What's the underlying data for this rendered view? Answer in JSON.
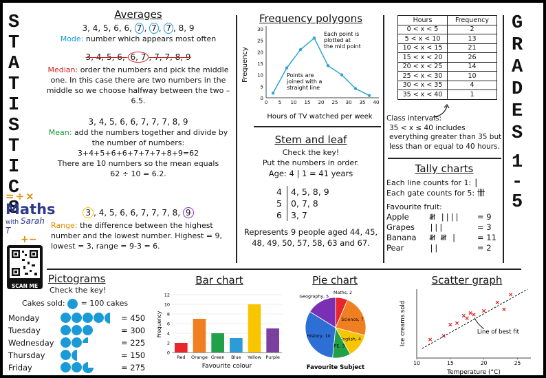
{
  "side_left": "STATISTICS",
  "side_right": "GRADES 1-5",
  "averages": {
    "title": "Averages",
    "list1_plain": "3, 4, 5, 6, 6, ",
    "list1_circled": [
      "7",
      "7",
      "7"
    ],
    "list1_end": ", 8, 9",
    "mode_label": "Mode:",
    "mode_text": "number which appears most often",
    "list2_struck1": "3, 4, 5, 6, ",
    "list2_circled": "6, 7",
    "list2_struck2": ", 7, 7, 8, 9",
    "median_label": "Median:",
    "median_text": "order the numbers and pick the middle one. In this case there are two numbers in the middle so we choose halfway between the two – 6.5.",
    "list3": "3, 4, 5, 6, 6, 7, 7, 7, 8, 9",
    "mean_label": "Mean:",
    "mean_text": "add the numbers together and divide by the number of numbers:",
    "mean_sum": "3+4+5+6+6+7+7+7+8+9=62",
    "mean_line2": "There are 10 numbers so the mean equals",
    "mean_line3": "62 ÷ 10 = 6.2.",
    "list4_first": "3",
    "list4_mid": ", 4, 5, 6, 6, 7, 7, 7, 8, ",
    "list4_last": "9",
    "range_label": "Range:",
    "range_text": "the difference between the highest number and the lowest number. Highest = 9, lowest = 3, range = 9-3 = 6."
  },
  "logo": {
    "symbols_top": "=÷×",
    "maths": "Maths",
    "with": "with",
    "name": "Sarah T",
    "symbols_bottom": "+−",
    "scan": "SCAN ME"
  },
  "freq_polygon": {
    "title": "Frequency polygons",
    "ylabel": "Frequency",
    "xlabel": "Hours of TV watched per week",
    "annot1": "Each point is plotted at the mid point",
    "annot2": "Points are joined with a straight line",
    "yticks": [
      "0",
      "5",
      "10",
      "15",
      "20",
      "25",
      "30"
    ],
    "xticks": [
      "0",
      "5",
      "10",
      "15",
      "20",
      "25",
      "30",
      "35",
      "40"
    ]
  },
  "chart_data": [
    {
      "type": "line",
      "title": "Frequency polygons",
      "xlabel": "Hours of TV watched per week",
      "ylabel": "Frequency",
      "x": [
        2.5,
        7.5,
        12.5,
        17.5,
        22.5,
        27.5,
        32.5,
        37.5
      ],
      "values": [
        2,
        13,
        21,
        26,
        14,
        10,
        4,
        1
      ],
      "xlim": [
        0,
        40
      ],
      "ylim": [
        0,
        30
      ],
      "grid": false
    },
    {
      "type": "bar",
      "title": "Bar chart",
      "xlabel": "Favourite colour",
      "ylabel": "Frequency",
      "categories": [
        "Red",
        "Orange",
        "Green",
        "Blue",
        "Yellow",
        "Purple"
      ],
      "values": [
        2,
        7,
        4,
        3,
        10,
        5
      ],
      "colors": [
        "#e8262b",
        "#f07f22",
        "#21a04a",
        "#2e9bd6",
        "#f7c600",
        "#7b3fa0"
      ],
      "ylim": [
        0,
        12
      ],
      "grid": true
    },
    {
      "type": "pie",
      "title": "Pie chart",
      "xlabel": "Favourite Subject",
      "categories": [
        "Geography",
        "Maths",
        "Science",
        "English",
        "PE",
        "History"
      ],
      "values": [
        5,
        2,
        7,
        4,
        3,
        10
      ],
      "colors": [
        "#7b2fb5",
        "#e8262b",
        "#f07f22",
        "#f7c600",
        "#21a04a",
        "#2e6fd6"
      ]
    },
    {
      "type": "scatter",
      "title": "Scatter graph",
      "xlabel": "Temperature (°C)",
      "ylabel": "Ice creams sold",
      "x": [
        12,
        14,
        15,
        16,
        17,
        17.5,
        18,
        18.5,
        20,
        22,
        23,
        24
      ],
      "values": [
        3.5,
        4.2,
        6.3,
        6.6,
        8.0,
        7.5,
        8.5,
        8.2,
        8.9,
        10.5,
        9.2,
        12.0
      ],
      "xlim": [
        10,
        27
      ],
      "xticks": [
        10,
        15,
        20,
        25
      ],
      "trendline_label": "Line of best fit"
    }
  ],
  "freq_table": {
    "headers": [
      "Hours",
      "Frequency"
    ],
    "rows": [
      [
        "0 < x < 5",
        "2"
      ],
      [
        "5 < x < 10",
        "13"
      ],
      [
        "10 < x < 15",
        "21"
      ],
      [
        "15 < x < 20",
        "26"
      ],
      [
        "20 < x < 25",
        "14"
      ],
      [
        "25 < x < 30",
        "10"
      ],
      [
        "30 < x < 35",
        "4"
      ],
      [
        "35 < x < 40",
        "1"
      ]
    ],
    "note_label": "Class intervals:",
    "note": "35 < x ≤ 40 includes everything greater than 35 but less than or equal to 40 hours."
  },
  "stem_leaf": {
    "title": "Stem and leaf",
    "line1": "Check the key!",
    "line2": "Put the numbers in order.",
    "key": "Age:  4 | 1 = 41 years",
    "stems": [
      "4",
      "5",
      "6"
    ],
    "leaves": [
      "4, 5, 8, 9",
      "0, 7, 8",
      "3, 7"
    ],
    "summary": "Represents 9 people aged 44, 45, 48, 49, 50, 57, 58, 63 and 67."
  },
  "tally": {
    "title": "Tally charts",
    "line1": "Each line counts for 1:",
    "line2": "Each gate counts for 5:",
    "heading": "Favourite fruit:",
    "rows": [
      {
        "fruit": "Apple",
        "marks": "𝍸 ||||",
        "value": "= 9"
      },
      {
        "fruit": "Grapes",
        "marks": "|||",
        "value": "= 3"
      },
      {
        "fruit": "Banana",
        "marks": "𝍸 𝍸 |",
        "value": "= 11"
      },
      {
        "fruit": "Pear",
        "marks": "||",
        "value": "= 2"
      }
    ]
  },
  "pictogram": {
    "title": "Pictograms",
    "line1": "Check the key!",
    "key_label": "Cakes sold:",
    "key_value": "= 100 cakes",
    "rows": [
      {
        "day": "Monday",
        "value": "= 450",
        "full": 4,
        "part": "half"
      },
      {
        "day": "Tuesday",
        "value": "= 300",
        "full": 3,
        "part": "none"
      },
      {
        "day": "Wednesday",
        "value": "= 225",
        "full": 2,
        "part": "quarter"
      },
      {
        "day": "Thursday",
        "value": "= 150",
        "full": 1,
        "part": "half"
      },
      {
        "day": "Friday",
        "value": "= 275",
        "full": 2,
        "part": "threequarter"
      }
    ]
  },
  "bar_chart": {
    "title": "Bar chart",
    "ylabel": "Frequency",
    "xlabel": "Favourite colour",
    "yticks": [
      "0",
      "2",
      "4",
      "6",
      "8",
      "10",
      "12"
    ]
  },
  "pie_chart": {
    "title": "Pie chart",
    "caption": "Favourite Subject",
    "labels": [
      "Geography, 5",
      "Maths, 2",
      "Science, 7",
      "English, 4",
      "PE, 3",
      "History, 10"
    ]
  },
  "scatter": {
    "title": "Scatter graph",
    "ylabel": "Ice creams sold",
    "xlabel": "Temperature (°C)",
    "xticks": [
      "10",
      "15",
      "20",
      "25"
    ],
    "annot": "Line of best fit"
  }
}
